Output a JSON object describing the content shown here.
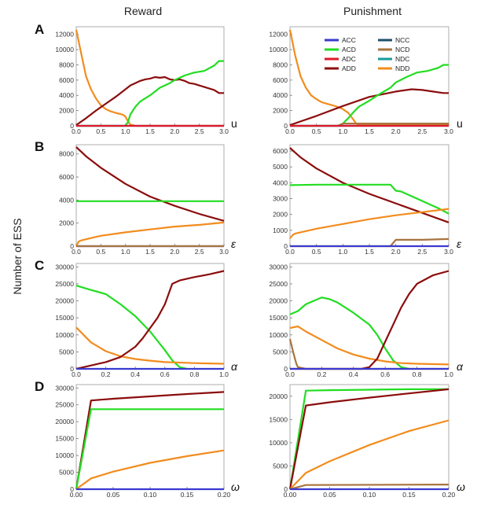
{
  "column_titles": {
    "left": "Reward",
    "right": "Punishment"
  },
  "y_axis_label": "Number of ESS",
  "panel_letters": [
    "A",
    "B",
    "C",
    "D"
  ],
  "legend": [
    {
      "key": "ACC",
      "label": "ACC",
      "color": "#3a3ad0"
    },
    {
      "key": "NCC",
      "label": "NCC",
      "color": "#1f4f6b"
    },
    {
      "key": "ACD",
      "label": "ACD",
      "color": "#22dd22"
    },
    {
      "key": "NCD",
      "label": "NCD",
      "color": "#a8743e"
    },
    {
      "key": "ADC",
      "label": "ADC",
      "color": "#dd1a2a"
    },
    {
      "key": "NDC",
      "label": "NDC",
      "color": "#1a9a9a"
    },
    {
      "key": "ADD",
      "label": "ADD",
      "color": "#8b0d0d"
    },
    {
      "key": "NDD",
      "label": "NDD",
      "color": "#f28c1e"
    }
  ],
  "chart_data": [
    {
      "id": "A-reward",
      "type": "line",
      "panel": "A",
      "column": "Reward",
      "xvar": "u",
      "xlim": [
        0,
        3
      ],
      "ylim": [
        0,
        13000
      ],
      "xticks": [
        "0.0",
        "0.5",
        "1.0",
        "1.5",
        "2.0",
        "2.5",
        "3.0"
      ],
      "yticks": [
        "0",
        "2000",
        "4000",
        "6000",
        "8000",
        "10000",
        "12000"
      ],
      "series": [
        {
          "key": "NDD",
          "x": [
            0,
            0.1,
            0.2,
            0.3,
            0.4,
            0.5,
            0.6,
            0.7,
            0.8,
            0.9,
            0.95,
            1.0,
            1.05,
            1.1,
            1.2,
            1.5,
            2.0,
            3.0
          ],
          "y": [
            12600,
            9500,
            6500,
            4800,
            3600,
            2700,
            2200,
            1900,
            1700,
            1550,
            1450,
            1200,
            600,
            150,
            0,
            0,
            0,
            0
          ]
        },
        {
          "key": "ADD",
          "x": [
            0,
            0.2,
            0.4,
            0.6,
            0.8,
            1.0,
            1.1,
            1.2,
            1.3,
            1.4,
            1.5,
            1.6,
            1.7,
            1.8,
            1.9,
            2.0,
            2.1,
            2.2,
            2.3,
            2.4,
            2.6,
            2.8,
            2.9,
            3.0
          ],
          "y": [
            100,
            1000,
            2000,
            2900,
            3800,
            4800,
            5300,
            5600,
            5900,
            6100,
            6200,
            6400,
            6300,
            6400,
            6100,
            6000,
            6100,
            5900,
            5600,
            5500,
            5100,
            4700,
            4300,
            4300
          ]
        },
        {
          "key": "ACD",
          "x": [
            0,
            1.0,
            1.05,
            1.1,
            1.2,
            1.3,
            1.4,
            1.5,
            1.6,
            1.7,
            1.8,
            1.9,
            2.0,
            2.2,
            2.4,
            2.6,
            2.8,
            2.9,
            3.0
          ],
          "y": [
            0,
            0,
            500,
            1500,
            2500,
            3200,
            3600,
            4000,
            4500,
            5000,
            5300,
            5600,
            6000,
            6600,
            7000,
            7200,
            7900,
            8500,
            8500
          ]
        },
        {
          "key": "ACC",
          "x": [
            0,
            3
          ],
          "y": [
            0,
            0
          ]
        },
        {
          "key": "ADC",
          "x": [
            0,
            3
          ],
          "y": [
            0,
            0
          ]
        }
      ]
    },
    {
      "id": "A-punishment",
      "type": "line",
      "panel": "A",
      "column": "Punishment",
      "xvar": "u",
      "xlim": [
        0,
        3
      ],
      "ylim": [
        0,
        13000
      ],
      "xticks": [
        "0.0",
        "0.5",
        "1.0",
        "1.5",
        "2.0",
        "2.5",
        "3.0"
      ],
      "yticks": [
        "0",
        "2000",
        "4000",
        "6000",
        "8000",
        "10000",
        "12000"
      ],
      "series": [
        {
          "key": "NDD",
          "x": [
            0,
            0.1,
            0.2,
            0.3,
            0.4,
            0.5,
            0.6,
            0.7,
            0.8,
            0.9,
            1.0,
            1.1,
            1.2,
            1.25,
            1.3,
            1.5,
            3.0
          ],
          "y": [
            12600,
            9200,
            6500,
            5000,
            4000,
            3500,
            3100,
            2900,
            2700,
            2500,
            2200,
            1700,
            800,
            300,
            150,
            100,
            100
          ]
        },
        {
          "key": "ADD",
          "x": [
            0,
            0.5,
            1.0,
            1.5,
            2.0,
            2.3,
            2.5,
            2.7,
            2.9,
            3.0
          ],
          "y": [
            100,
            1300,
            2600,
            3800,
            4500,
            4800,
            4700,
            4500,
            4300,
            4300
          ]
        },
        {
          "key": "ACD",
          "x": [
            0,
            0.95,
            1.0,
            1.1,
            1.2,
            1.3,
            1.5,
            1.7,
            1.9,
            2.0,
            2.2,
            2.4,
            2.6,
            2.8,
            2.9,
            3.0
          ],
          "y": [
            0,
            0,
            300,
            1000,
            1800,
            2500,
            3300,
            4200,
            5000,
            5700,
            6400,
            7000,
            7200,
            7600,
            8000,
            8000
          ]
        },
        {
          "key": "NCD",
          "x": [
            0,
            0.9,
            1.0,
            3.0
          ],
          "y": [
            0,
            0,
            300,
            300
          ]
        },
        {
          "key": "ACC",
          "x": [
            0,
            3
          ],
          "y": [
            0,
            0
          ]
        },
        {
          "key": "ADC",
          "x": [
            0,
            3
          ],
          "y": [
            0,
            0
          ]
        }
      ]
    },
    {
      "id": "B-reward",
      "type": "line",
      "panel": "B",
      "column": "Reward",
      "xvar": "ε",
      "xlim": [
        0,
        3
      ],
      "ylim": [
        0,
        8800
      ],
      "xticks": [
        "0.0",
        "0.5",
        "1.0",
        "1.5",
        "2.0",
        "2.5",
        "3.0"
      ],
      "yticks": [
        "0",
        "2000",
        "4000",
        "6000",
        "8000"
      ],
      "series": [
        {
          "key": "ADD",
          "x": [
            0,
            0.05,
            0.1,
            0.2,
            0.5,
            1.0,
            1.5,
            2.0,
            2.5,
            3.0
          ],
          "y": [
            8600,
            8400,
            8200,
            7800,
            6800,
            5400,
            4300,
            3500,
            2800,
            2200
          ]
        },
        {
          "key": "ACD",
          "x": [
            0,
            3
          ],
          "y": [
            3900,
            3900
          ]
        },
        {
          "key": "NDD",
          "x": [
            0,
            0.05,
            0.1,
            0.3,
            0.5,
            1.0,
            1.5,
            2.0,
            2.5,
            3.0
          ],
          "y": [
            0,
            400,
            500,
            700,
            900,
            1200,
            1450,
            1700,
            1850,
            2050
          ]
        },
        {
          "key": "ACC",
          "x": [
            0,
            3
          ],
          "y": [
            0,
            0
          ]
        },
        {
          "key": "NCD",
          "x": [
            0,
            3
          ],
          "y": [
            0,
            0
          ]
        }
      ]
    },
    {
      "id": "B-punishment",
      "type": "line",
      "panel": "B",
      "column": "Punishment",
      "xvar": "ε",
      "xlim": [
        0,
        3
      ],
      "ylim": [
        0,
        6400
      ],
      "xticks": [
        "0.0",
        "0.5",
        "1.0",
        "1.5",
        "2.0",
        "2.5",
        "3.0"
      ],
      "yticks": [
        "0",
        "1000",
        "2000",
        "3000",
        "4000",
        "5000",
        "6000"
      ],
      "series": [
        {
          "key": "ADD",
          "x": [
            0,
            0.1,
            0.2,
            0.5,
            1.0,
            1.5,
            2.0,
            2.5,
            3.0
          ],
          "y": [
            6200,
            5900,
            5600,
            4900,
            4000,
            3300,
            2700,
            2100,
            1500
          ]
        },
        {
          "key": "ACD",
          "x": [
            0,
            0.5,
            1.0,
            1.5,
            1.9,
            2.0,
            2.1,
            2.2,
            2.4,
            2.6,
            2.8,
            3.0
          ],
          "y": [
            3850,
            3880,
            3880,
            3880,
            3880,
            3500,
            3450,
            3300,
            3000,
            2700,
            2400,
            2050
          ]
        },
        {
          "key": "NDD",
          "x": [
            0,
            0.05,
            0.1,
            0.5,
            1.0,
            1.5,
            2.0,
            2.5,
            3.0
          ],
          "y": [
            500,
            700,
            800,
            1100,
            1400,
            1700,
            1950,
            2150,
            2350
          ]
        },
        {
          "key": "NCD",
          "x": [
            0,
            1.9,
            2.0,
            2.5,
            3.0
          ],
          "y": [
            0,
            0,
            400,
            400,
            450
          ]
        },
        {
          "key": "ACC",
          "x": [
            0,
            3
          ],
          "y": [
            0,
            0
          ]
        }
      ]
    },
    {
      "id": "C-reward",
      "type": "line",
      "panel": "C",
      "column": "Reward",
      "xvar": "α",
      "xlim": [
        0,
        1
      ],
      "ylim": [
        0,
        31000
      ],
      "xticks": [
        "0.0",
        "0.2",
        "0.4",
        "0.6",
        "0.8",
        "1.0"
      ],
      "yticks": [
        "0",
        "5000",
        "10000",
        "15000",
        "20000",
        "25000",
        "30000"
      ],
      "series": [
        {
          "key": "ACD",
          "x": [
            0,
            0.1,
            0.2,
            0.3,
            0.4,
            0.5,
            0.6,
            0.65,
            0.7,
            0.75
          ],
          "y": [
            24500,
            23200,
            22000,
            19000,
            15500,
            11000,
            5500,
            2500,
            500,
            0
          ]
        },
        {
          "key": "NDD",
          "x": [
            0,
            0.05,
            0.1,
            0.15,
            0.2,
            0.3,
            0.4,
            0.5,
            0.6,
            0.8,
            1.0
          ],
          "y": [
            12200,
            10000,
            7800,
            6500,
            5200,
            3700,
            2900,
            2400,
            2000,
            1700,
            1500
          ]
        },
        {
          "key": "ADD",
          "x": [
            0,
            0.1,
            0.2,
            0.3,
            0.4,
            0.45,
            0.5,
            0.55,
            0.6,
            0.65,
            0.7,
            0.8,
            0.9,
            1.0
          ],
          "y": [
            0,
            1000,
            2000,
            3500,
            6500,
            9000,
            12000,
            15000,
            19000,
            25000,
            26000,
            27000,
            27800,
            28800
          ]
        },
        {
          "key": "ACC",
          "x": [
            0,
            1
          ],
          "y": [
            0,
            0
          ]
        }
      ]
    },
    {
      "id": "C-punishment",
      "type": "line",
      "panel": "C",
      "column": "Punishment",
      "xvar": "α",
      "xlim": [
        0,
        1
      ],
      "ylim": [
        0,
        31000
      ],
      "xticks": [
        "0.0",
        "0.2",
        "0.4",
        "0.6",
        "0.8",
        "1.0"
      ],
      "yticks": [
        "0",
        "5000",
        "10000",
        "15000",
        "20000",
        "25000",
        "30000"
      ],
      "series": [
        {
          "key": "ACD",
          "x": [
            0,
            0.05,
            0.1,
            0.15,
            0.2,
            0.25,
            0.3,
            0.4,
            0.5,
            0.55,
            0.6,
            0.65,
            0.7,
            0.75
          ],
          "y": [
            16000,
            17000,
            19000,
            20000,
            21000,
            20500,
            19500,
            16500,
            13000,
            10000,
            6000,
            2500,
            500,
            0
          ]
        },
        {
          "key": "NDD",
          "x": [
            0,
            0.05,
            0.1,
            0.2,
            0.3,
            0.4,
            0.5,
            0.6,
            0.7,
            0.8,
            1.0
          ],
          "y": [
            12000,
            12500,
            11000,
            8500,
            6000,
            4200,
            3000,
            2200,
            1700,
            1500,
            1300
          ]
        },
        {
          "key": "NCD",
          "x": [
            0,
            0.02,
            0.04,
            0.05,
            0.1,
            1.0
          ],
          "y": [
            8800,
            5000,
            1500,
            500,
            0,
            0
          ]
        },
        {
          "key": "ADD",
          "x": [
            0,
            0.45,
            0.5,
            0.55,
            0.6,
            0.65,
            0.7,
            0.75,
            0.8,
            0.9,
            1.0
          ],
          "y": [
            0,
            0,
            500,
            3000,
            8000,
            13000,
            18000,
            22000,
            25000,
            27500,
            28800
          ]
        },
        {
          "key": "ACC",
          "x": [
            0,
            1
          ],
          "y": [
            0,
            0
          ]
        }
      ]
    },
    {
      "id": "D-reward",
      "type": "line",
      "panel": "D",
      "column": "Reward",
      "xvar": "ω",
      "xlim": [
        0,
        0.2
      ],
      "ylim": [
        0,
        31000
      ],
      "xticks": [
        "0.00",
        "0.05",
        "0.10",
        "0.15",
        "0.20"
      ],
      "yticks": [
        "0",
        "5000",
        "10000",
        "15000",
        "20000",
        "25000",
        "30000"
      ],
      "series": [
        {
          "key": "ADD",
          "x": [
            0,
            0.02,
            0.05,
            0.1,
            0.15,
            0.2
          ],
          "y": [
            0,
            26300,
            26800,
            27500,
            28200,
            28800
          ]
        },
        {
          "key": "ACD",
          "x": [
            0,
            0.02,
            0.2
          ],
          "y": [
            0,
            23700,
            23700
          ]
        },
        {
          "key": "NDD",
          "x": [
            0,
            0.02,
            0.05,
            0.1,
            0.15,
            0.2
          ],
          "y": [
            0,
            3200,
            5200,
            7800,
            9800,
            11500
          ]
        },
        {
          "key": "ACC",
          "x": [
            0,
            0.2
          ],
          "y": [
            0,
            0
          ]
        }
      ]
    },
    {
      "id": "D-punishment",
      "type": "line",
      "panel": "D",
      "column": "Punishment",
      "xvar": "ω",
      "xlim": [
        0,
        0.2
      ],
      "ylim": [
        0,
        22500
      ],
      "xticks": [
        "0.00",
        "0.05",
        "0.10",
        "0.15",
        "0.20"
      ],
      "yticks": [
        "0",
        "5000",
        "10000",
        "15000",
        "20000"
      ],
      "series": [
        {
          "key": "ACD",
          "x": [
            0,
            0.02,
            0.05,
            0.1,
            0.15,
            0.2
          ],
          "y": [
            0,
            21200,
            21300,
            21400,
            21500,
            21500
          ]
        },
        {
          "key": "ADD",
          "x": [
            0,
            0.02,
            0.05,
            0.1,
            0.15,
            0.2
          ],
          "y": [
            0,
            18000,
            18700,
            19700,
            20600,
            21500
          ]
        },
        {
          "key": "NDD",
          "x": [
            0,
            0.02,
            0.05,
            0.1,
            0.15,
            0.2
          ],
          "y": [
            0,
            3500,
            6000,
            9500,
            12500,
            14800
          ]
        },
        {
          "key": "NCD",
          "x": [
            0,
            0.02,
            0.2
          ],
          "y": [
            0,
            900,
            1000
          ]
        },
        {
          "key": "ACC",
          "x": [
            0,
            0.2
          ],
          "y": [
            0,
            0
          ]
        }
      ]
    }
  ]
}
